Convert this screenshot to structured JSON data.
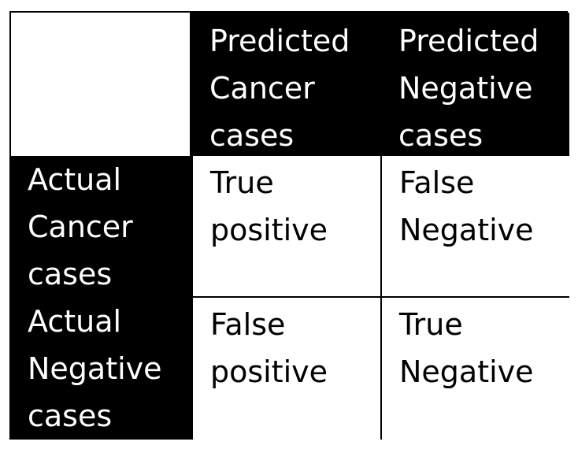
{
  "matrix": {
    "corner": "",
    "columns": [
      {
        "lines": [
          "Predicted",
          "Cancer",
          "cases"
        ]
      },
      {
        "lines": [
          "Predicted",
          "Negative",
          "cases"
        ]
      }
    ],
    "rows": [
      {
        "lines": [
          "Actual",
          "Cancer",
          "cases"
        ],
        "cells": [
          {
            "lines": [
              "True",
              "positive"
            ]
          },
          {
            "lines": [
              "False",
              "Negative"
            ]
          }
        ]
      },
      {
        "lines": [
          "Actual",
          "Negative",
          "cases"
        ],
        "cells": [
          {
            "lines": [
              "False",
              "positive"
            ]
          },
          {
            "lines": [
              "True",
              "Negative"
            ]
          }
        ]
      }
    ]
  },
  "colors": {
    "header_background": "#000000",
    "header_text": "#ffffff",
    "cell_background": "#ffffff",
    "cell_text": "#000000",
    "grid_lines": "#000000"
  }
}
